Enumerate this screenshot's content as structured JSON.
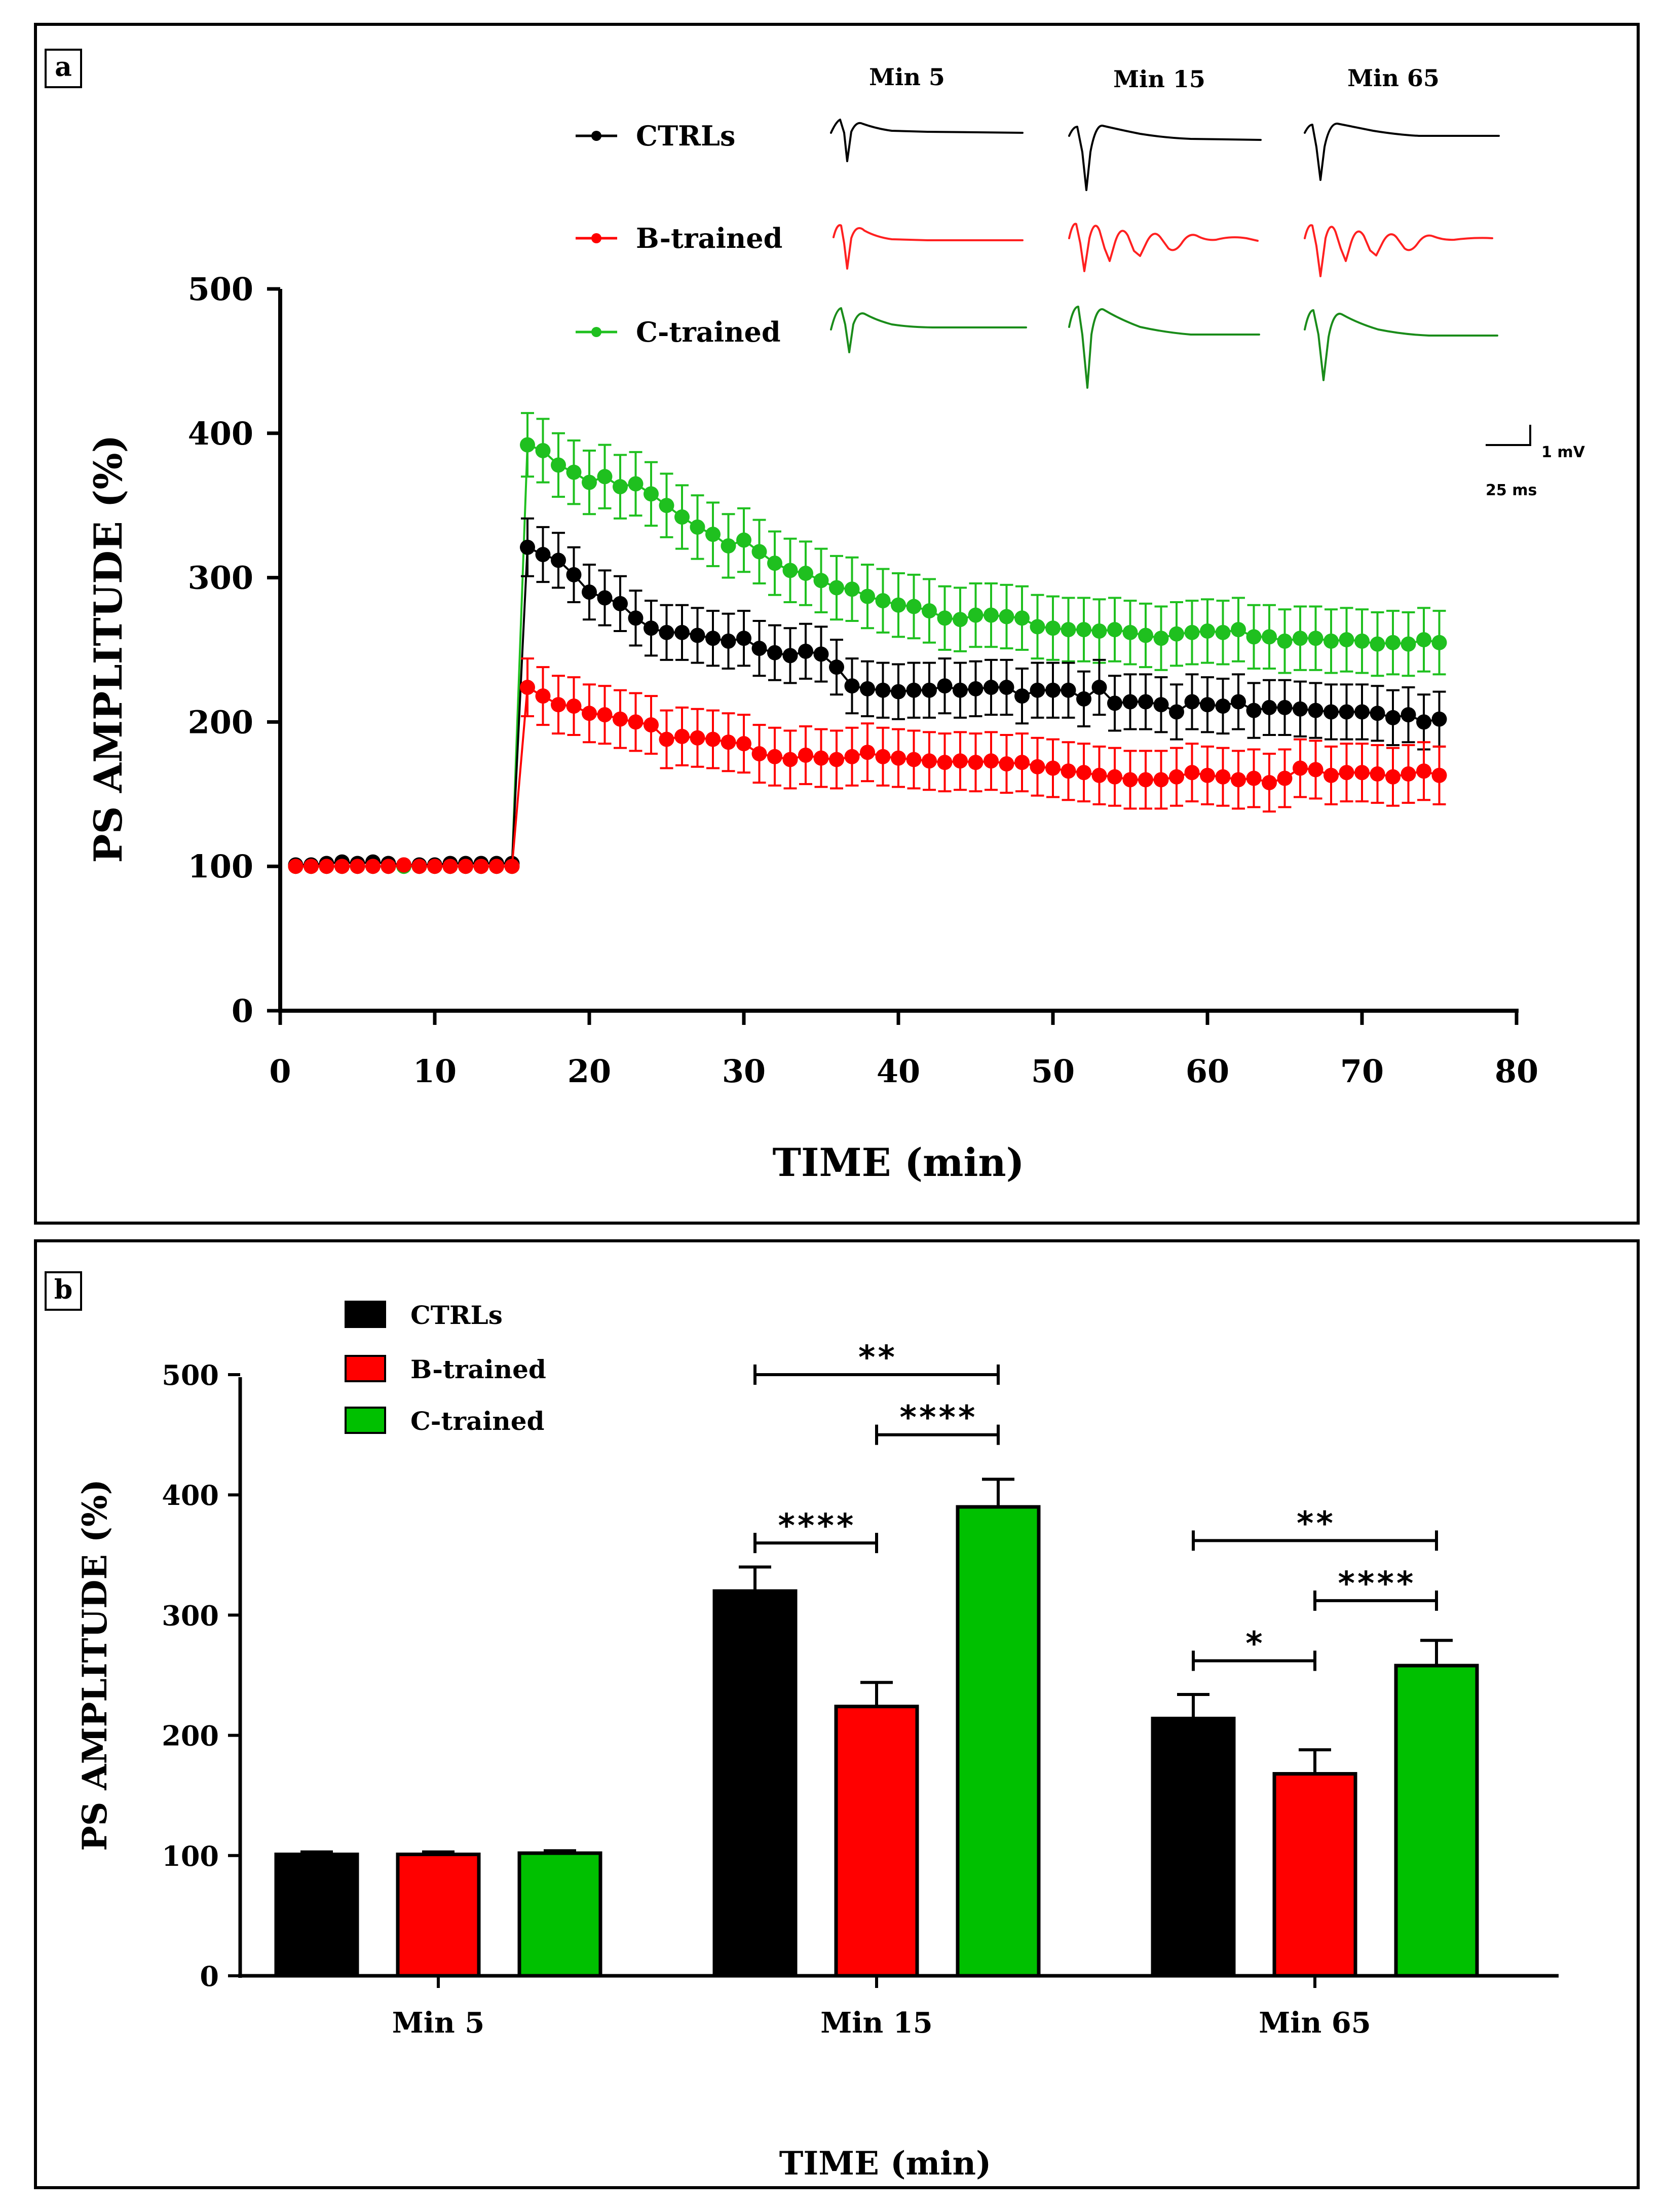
{
  "colors": {
    "ctrl": "#000000",
    "btrained": "#ff0000",
    "ctrained": "#00bb00",
    "ctrained_line": "#1a8c1a",
    "ctrained_bar": "#00c000"
  },
  "chart_data": [
    {
      "panel": "a",
      "type": "line",
      "xlabel": "TIME (min)",
      "ylabel": "PS AMPLITUDE (%)",
      "xlim": [
        0,
        80
      ],
      "ylim": [
        0,
        500
      ],
      "xticks": [
        0,
        10,
        20,
        30,
        40,
        50,
        60,
        70,
        80
      ],
      "yticks": [
        0,
        100,
        200,
        300,
        400,
        500
      ],
      "legend": [
        "CTRLs",
        "B-trained",
        "C-trained"
      ],
      "trace_labels": [
        "Min 5",
        "Min 15",
        "Min 65"
      ],
      "scale_bar": {
        "voltage": "1 mV",
        "time": "25 ms"
      },
      "x": [
        1,
        2,
        3,
        4,
        5,
        6,
        7,
        8,
        9,
        10,
        11,
        12,
        13,
        14,
        15,
        16,
        17,
        18,
        19,
        20,
        21,
        22,
        23,
        24,
        25,
        26,
        27,
        28,
        29,
        30,
        31,
        32,
        33,
        34,
        35,
        36,
        37,
        38,
        39,
        40,
        41,
        42,
        43,
        44,
        45,
        46,
        47,
        48,
        49,
        50,
        51,
        52,
        53,
        54,
        55,
        56,
        57,
        58,
        59,
        60,
        61,
        62,
        63,
        64,
        65,
        66,
        67,
        68,
        69,
        70,
        71,
        72,
        73,
        74,
        75
      ],
      "series": [
        {
          "name": "CTRLs",
          "values": [
            101,
            101,
            102,
            103,
            102,
            103,
            102,
            101,
            101,
            101,
            102,
            102,
            102,
            102,
            102,
            321,
            316,
            312,
            302,
            290,
            286,
            282,
            272,
            265,
            262,
            262,
            260,
            258,
            256,
            258,
            251,
            248,
            246,
            249,
            247,
            238,
            225,
            223,
            222,
            221,
            222,
            222,
            225,
            222,
            223,
            224,
            224,
            218,
            222,
            222,
            222,
            216,
            224,
            213,
            214,
            214,
            212,
            207,
            214,
            212,
            211,
            214,
            208,
            210,
            210,
            209,
            208,
            207,
            207,
            207,
            206,
            203,
            205,
            200,
            202
          ],
          "errors": [
            2,
            2,
            2,
            2,
            2,
            2,
            2,
            2,
            2,
            2,
            2,
            2,
            2,
            2,
            2,
            20,
            19,
            19,
            19,
            19,
            19,
            19,
            19,
            19,
            19,
            19,
            19,
            19,
            19,
            19,
            19,
            19,
            19,
            19,
            19,
            19,
            19,
            19,
            19,
            19,
            19,
            19,
            19,
            19,
            19,
            19,
            19,
            19,
            19,
            19,
            19,
            19,
            19,
            19,
            19,
            19,
            19,
            19,
            19,
            19,
            19,
            19,
            19,
            19,
            19,
            19,
            19,
            19,
            19,
            19,
            19,
            19,
            19,
            19,
            19
          ]
        },
        {
          "name": "B-trained",
          "values": [
            100,
            100,
            100,
            100,
            100,
            100,
            100,
            101,
            100,
            100,
            100,
            100,
            100,
            100,
            100,
            224,
            218,
            212,
            211,
            206,
            205,
            202,
            200,
            198,
            188,
            190,
            189,
            188,
            186,
            185,
            178,
            176,
            174,
            177,
            175,
            174,
            176,
            179,
            176,
            175,
            174,
            173,
            172,
            173,
            172,
            173,
            171,
            172,
            169,
            168,
            166,
            165,
            163,
            162,
            160,
            160,
            160,
            162,
            165,
            163,
            162,
            160,
            161,
            158,
            161,
            168,
            167,
            163,
            165,
            165,
            164,
            162,
            164,
            166,
            163
          ],
          "errors": [
            2,
            2,
            2,
            2,
            2,
            2,
            2,
            2,
            2,
            2,
            2,
            2,
            2,
            2,
            2,
            20,
            20,
            20,
            20,
            20,
            20,
            20,
            20,
            20,
            20,
            20,
            20,
            20,
            20,
            20,
            20,
            20,
            20,
            20,
            20,
            20,
            20,
            20,
            20,
            20,
            20,
            20,
            20,
            20,
            20,
            20,
            20,
            20,
            20,
            20,
            20,
            20,
            20,
            20,
            20,
            20,
            20,
            20,
            20,
            20,
            20,
            20,
            20,
            20,
            20,
            20,
            20,
            20,
            20,
            20,
            20,
            20,
            20,
            20,
            20
          ]
        },
        {
          "name": "C-trained",
          "values": [
            100,
            100,
            100,
            100,
            100,
            100,
            100,
            100,
            100,
            100,
            100,
            100,
            100,
            100,
            100,
            392,
            388,
            378,
            373,
            366,
            370,
            363,
            365,
            358,
            350,
            342,
            335,
            330,
            322,
            326,
            318,
            310,
            305,
            303,
            298,
            293,
            292,
            287,
            284,
            281,
            280,
            277,
            272,
            271,
            274,
            274,
            273,
            272,
            266,
            265,
            264,
            264,
            263,
            264,
            262,
            260,
            258,
            261,
            262,
            263,
            262,
            264,
            259,
            259,
            256,
            258,
            258,
            256,
            257,
            256,
            254,
            255,
            254,
            257,
            255
          ],
          "errors": [
            2,
            2,
            2,
            2,
            2,
            2,
            2,
            2,
            2,
            2,
            2,
            2,
            2,
            2,
            2,
            22,
            22,
            22,
            22,
            22,
            22,
            22,
            22,
            22,
            22,
            22,
            22,
            22,
            22,
            22,
            22,
            22,
            22,
            22,
            22,
            22,
            22,
            22,
            22,
            22,
            22,
            22,
            22,
            22,
            22,
            22,
            22,
            22,
            22,
            22,
            22,
            22,
            22,
            22,
            22,
            22,
            22,
            22,
            22,
            22,
            22,
            22,
            22,
            22,
            22,
            22,
            22,
            22,
            22,
            22,
            22,
            22,
            22,
            22,
            22
          ]
        }
      ]
    },
    {
      "panel": "b",
      "type": "bar",
      "xlabel": "TIME (min)",
      "ylabel": "PS AMPLITUDE (%)",
      "ylim": [
        0,
        500
      ],
      "yticks": [
        0,
        100,
        200,
        300,
        400,
        500
      ],
      "categories": [
        "Min 5",
        "Min 15",
        "Min 65"
      ],
      "legend": [
        "CTRLs",
        "B-trained",
        "C-trained"
      ],
      "series": [
        {
          "name": "CTRLs",
          "values": [
            101,
            320,
            214
          ],
          "errors": [
            2,
            20,
            20
          ]
        },
        {
          "name": "B-trained",
          "values": [
            101,
            224,
            168
          ],
          "errors": [
            2,
            20,
            20
          ]
        },
        {
          "name": "C-trained",
          "values": [
            102,
            390,
            258
          ],
          "errors": [
            2,
            23,
            21
          ]
        }
      ],
      "significance": [
        {
          "category": "Min 15",
          "from": "CTRLs",
          "to": "C-trained",
          "level": 500,
          "label": "**"
        },
        {
          "category": "Min 15",
          "from": "B-trained",
          "to": "C-trained",
          "level": 450,
          "label": "****"
        },
        {
          "category": "Min 15",
          "from": "CTRLs",
          "to": "B-trained",
          "level": 360,
          "label": "****"
        },
        {
          "category": "Min 65",
          "from": "CTRLs",
          "to": "C-trained",
          "level": 362,
          "label": "**"
        },
        {
          "category": "Min 65",
          "from": "B-trained",
          "to": "C-trained",
          "level": 312,
          "label": "****"
        },
        {
          "category": "Min 65",
          "from": "CTRLs",
          "to": "B-trained",
          "level": 262,
          "label": "*"
        }
      ]
    }
  ],
  "panels": {
    "a": "a",
    "b": "b"
  }
}
